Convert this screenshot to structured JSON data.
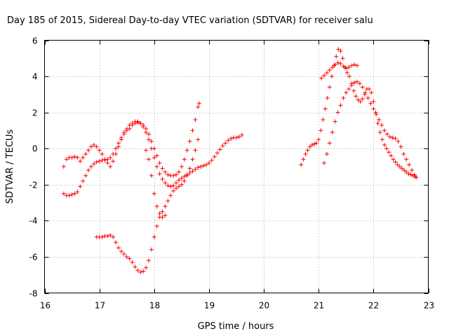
{
  "chart_data": {
    "type": "scatter",
    "title": "Day 185 of 2015, Sidereal Day-to-day VTEC variation (SDTVAR) for receiver salu",
    "xlabel": "GPS time / hours",
    "ylabel": "SDTVAR / TECUs",
    "xlim": [
      16,
      23
    ],
    "ylim": [
      -8,
      6
    ],
    "x_ticks": [
      "16",
      "17",
      "18",
      "19",
      "20",
      "21",
      "22",
      "23"
    ],
    "y_ticks": [
      "-8",
      "-6",
      "-4",
      "-2",
      "0",
      "2",
      "4",
      "6"
    ],
    "grid": true,
    "legend": "none",
    "marker": "plus",
    "color": "#ff0000",
    "series": [
      {
        "x": [
          16.35,
          16.4,
          16.45,
          16.5,
          16.55,
          16.6,
          16.65,
          16.7,
          16.75,
          16.8,
          16.85,
          16.9,
          16.95,
          17.0,
          17.05,
          17.1,
          17.15,
          17.2,
          17.25,
          17.3,
          17.35,
          17.4,
          17.45,
          17.5,
          17.55,
          17.6,
          17.65,
          17.7,
          17.75,
          17.8,
          17.85,
          17.9,
          17.95,
          18.0,
          18.05,
          18.1,
          18.15,
          18.2,
          18.25,
          18.3,
          18.35,
          18.4,
          18.45,
          18.5,
          18.55,
          18.6,
          18.65,
          18.7,
          18.75,
          18.8,
          18.82
        ],
        "y": [
          -1.0,
          -0.6,
          -0.5,
          -0.5,
          -0.45,
          -0.5,
          -0.7,
          -0.5,
          -0.3,
          -0.1,
          0.1,
          0.2,
          0.1,
          -0.1,
          -0.3,
          -0.6,
          -0.8,
          -1.0,
          -0.7,
          -0.3,
          0.1,
          0.5,
          0.8,
          1.0,
          1.1,
          1.3,
          1.4,
          1.45,
          1.4,
          1.3,
          1.1,
          0.8,
          0.4,
          0.0,
          -0.4,
          -0.8,
          -1.1,
          -1.3,
          -1.45,
          -1.5,
          -1.5,
          -1.45,
          -1.3,
          -1.0,
          -0.6,
          -0.1,
          0.4,
          1.0,
          1.6,
          2.3,
          2.5
        ]
      },
      {
        "x": [
          16.35,
          16.4,
          16.45,
          16.5,
          16.55,
          16.6,
          16.65,
          16.7,
          16.75,
          16.8,
          16.85,
          16.9,
          16.95,
          17.0,
          17.05,
          17.1,
          17.15,
          17.2,
          17.25,
          17.3,
          17.35,
          17.4,
          17.45,
          17.5,
          17.55,
          17.6,
          17.65,
          17.7,
          17.75,
          17.8,
          17.85,
          17.9,
          17.95,
          18.0,
          18.05,
          18.1,
          18.15,
          18.2,
          18.25,
          18.3,
          18.35,
          18.4,
          18.45,
          18.5,
          18.55,
          18.6,
          18.65,
          18.7,
          18.75,
          18.8,
          18.85,
          18.9,
          18.95,
          19.0,
          19.05,
          19.1,
          19.15,
          19.2,
          19.25,
          19.3,
          19.35,
          19.4,
          19.45,
          19.5,
          19.55,
          19.6
        ],
        "y": [
          -2.5,
          -2.6,
          -2.6,
          -2.55,
          -2.5,
          -2.4,
          -2.1,
          -1.8,
          -1.5,
          -1.2,
          -1.0,
          -0.85,
          -0.75,
          -0.7,
          -0.65,
          -0.65,
          -0.6,
          -0.5,
          -0.3,
          0.0,
          0.3,
          0.6,
          0.9,
          1.1,
          1.3,
          1.4,
          1.5,
          1.5,
          1.4,
          1.2,
          0.9,
          0.5,
          0.0,
          -0.5,
          -1.0,
          -1.4,
          -1.7,
          -1.9,
          -2.05,
          -2.1,
          -2.05,
          -1.9,
          -1.75,
          -1.65,
          -1.55,
          -1.45,
          -1.35,
          -1.25,
          -1.15,
          -1.05,
          -1.0,
          -0.95,
          -0.9,
          -0.8,
          -0.65,
          -0.45,
          -0.25,
          -0.05,
          0.15,
          0.3,
          0.45,
          0.55,
          0.6,
          0.6,
          0.65,
          0.75
        ]
      },
      {
        "x": [
          16.95,
          17.0,
          17.05,
          17.1,
          17.15,
          17.2,
          17.25,
          17.3,
          17.35,
          17.4,
          17.45,
          17.5,
          17.55,
          17.6,
          17.65,
          17.7,
          17.75,
          17.8,
          17.85,
          17.9,
          17.95,
          18.0,
          18.05,
          18.1,
          18.15,
          18.2,
          18.25,
          18.3,
          18.35,
          18.4,
          18.45,
          18.5,
          18.55,
          18.6,
          18.65,
          18.7,
          18.75,
          18.8
        ],
        "y": [
          -4.9,
          -4.9,
          -4.9,
          -4.85,
          -4.85,
          -4.8,
          -4.9,
          -5.2,
          -5.5,
          -5.7,
          -5.85,
          -6.0,
          -6.1,
          -6.3,
          -6.55,
          -6.75,
          -6.85,
          -6.8,
          -6.6,
          -6.2,
          -5.6,
          -4.9,
          -4.3,
          -3.8,
          -3.5,
          -3.2,
          -2.9,
          -2.6,
          -2.35,
          -2.2,
          -2.1,
          -2.0,
          -1.8,
          -1.5,
          -1.1,
          -0.6,
          -0.1,
          0.5
        ]
      },
      {
        "x": [
          17.85,
          17.9,
          17.95,
          18.0,
          18.05,
          18.1,
          18.15,
          18.2
        ],
        "y": [
          -0.1,
          -0.6,
          -1.5,
          -2.5,
          -3.2,
          -3.6,
          -3.8,
          -3.7
        ]
      },
      {
        "x": [
          20.68,
          20.72,
          20.76,
          20.8,
          20.84,
          20.88,
          20.92,
          20.96,
          21.0,
          21.04,
          21.08,
          21.12,
          21.16,
          21.2,
          21.24,
          21.28,
          21.32,
          21.36,
          21.4,
          21.44,
          21.48,
          21.52,
          21.56,
          21.6,
          21.64,
          21.68,
          21.72,
          21.76,
          21.8,
          21.84,
          21.88,
          21.92,
          21.96,
          22.0,
          22.04,
          22.08,
          22.12,
          22.16,
          22.2,
          22.24,
          22.28,
          22.32,
          22.36,
          22.4,
          22.44,
          22.48,
          22.52,
          22.56,
          22.6,
          22.64,
          22.68,
          22.72,
          22.76
        ],
        "y": [
          -0.9,
          -0.6,
          -0.3,
          -0.1,
          0.1,
          0.2,
          0.25,
          0.3,
          0.5,
          1.0,
          1.6,
          2.2,
          2.8,
          3.4,
          4.0,
          4.6,
          5.1,
          5.5,
          5.4,
          5.0,
          4.5,
          4.2,
          4.0,
          3.6,
          3.2,
          2.9,
          2.7,
          2.6,
          2.75,
          3.0,
          3.3,
          3.3,
          3.1,
          2.6,
          2.0,
          1.4,
          0.9,
          0.5,
          0.2,
          0.0,
          -0.2,
          -0.4,
          -0.6,
          -0.75,
          -0.9,
          -1.0,
          -1.1,
          -1.2,
          -1.3,
          -1.4,
          -1.45,
          -1.5,
          -1.55
        ]
      },
      {
        "x": [
          21.05,
          21.1,
          21.15,
          21.2,
          21.25,
          21.3,
          21.35,
          21.4,
          21.45,
          21.5,
          21.55,
          21.6,
          21.65,
          21.7
        ],
        "y": [
          3.9,
          4.05,
          4.2,
          4.35,
          4.5,
          4.65,
          4.75,
          4.7,
          4.55,
          4.45,
          4.5,
          4.6,
          4.65,
          4.6
        ]
      },
      {
        "x": [
          21.1,
          21.15,
          21.2,
          21.25,
          21.3,
          21.35,
          21.4,
          21.45,
          21.5,
          21.55,
          21.6,
          21.65,
          21.7,
          21.75,
          21.8,
          21.85,
          21.9,
          21.95,
          22.0,
          22.05,
          22.1,
          22.15,
          22.2,
          22.25,
          22.3,
          22.35,
          22.4,
          22.45,
          22.5,
          22.55,
          22.6,
          22.65,
          22.7,
          22.75,
          22.78
        ],
        "y": [
          -0.8,
          -0.3,
          0.3,
          0.9,
          1.5,
          2.0,
          2.4,
          2.8,
          3.1,
          3.3,
          3.5,
          3.65,
          3.7,
          3.6,
          3.4,
          3.1,
          2.8,
          2.5,
          2.2,
          1.9,
          1.6,
          1.3,
          1.0,
          0.8,
          0.65,
          0.6,
          0.55,
          0.4,
          0.1,
          -0.3,
          -0.6,
          -0.9,
          -1.2,
          -1.45,
          -1.6
        ]
      }
    ]
  }
}
